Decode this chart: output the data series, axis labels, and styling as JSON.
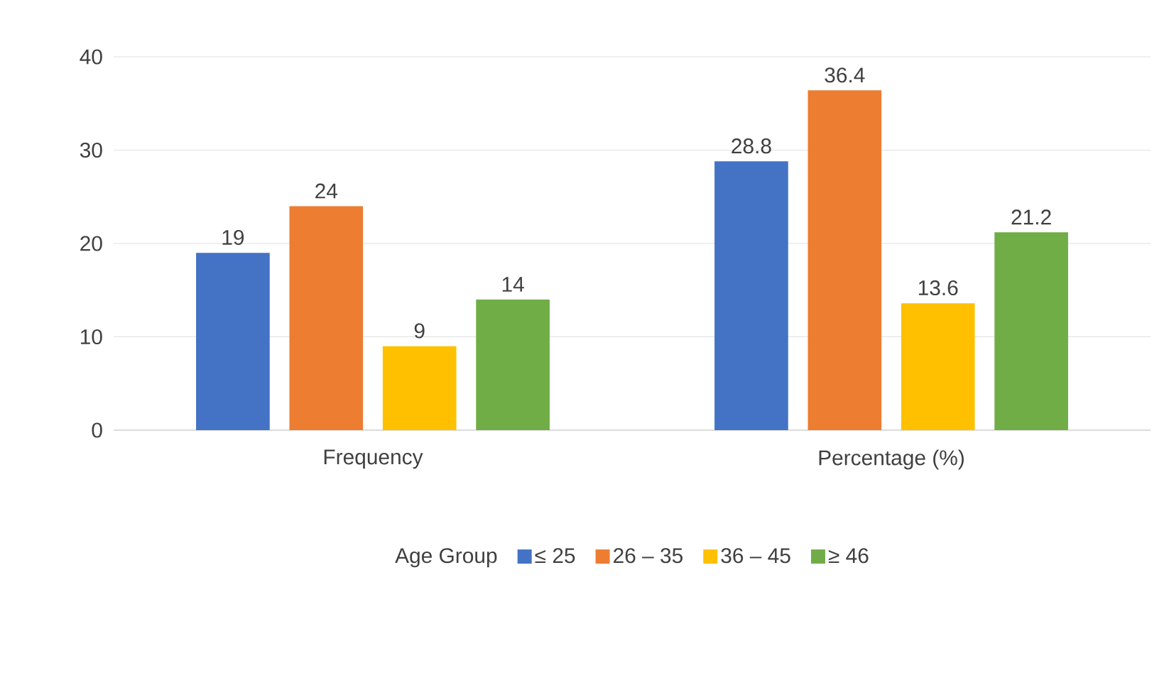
{
  "chart_data": {
    "type": "bar",
    "categories": [
      "Frequency",
      "Percentage (%)"
    ],
    "series": [
      {
        "name": "≤ 25",
        "color": "#4472c4",
        "values": [
          19,
          28.8
        ]
      },
      {
        "name": "26 – 35",
        "color": "#ed7d31",
        "values": [
          24,
          36.4
        ]
      },
      {
        "name": "36 – 45",
        "color": "#ffc000",
        "values": [
          9,
          13.6
        ]
      },
      {
        "name": "≥ 46",
        "color": "#70ad47",
        "values": [
          14,
          21.2
        ]
      }
    ],
    "ylim": [
      0,
      40
    ],
    "yticks": [
      0,
      10,
      20,
      30,
      40
    ],
    "grid": "y",
    "legend": "bottom",
    "legend_title": "Age Group",
    "data_labels": true
  }
}
